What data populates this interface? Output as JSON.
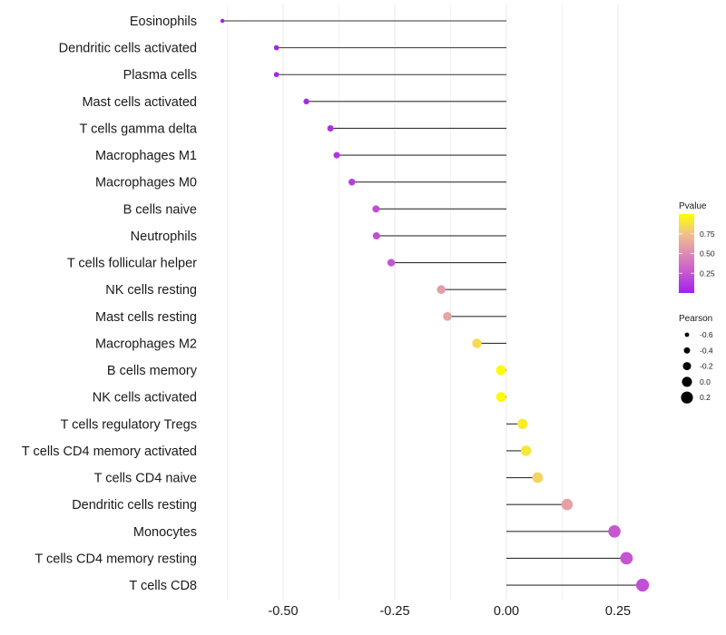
{
  "chart_data": {
    "type": "scatter",
    "subtype": "lollipop",
    "title": "",
    "xlabel": "",
    "ylabel": "",
    "xlim": [
      -0.66,
      0.33
    ],
    "x_ticks": [
      -0.5,
      -0.25,
      0.0,
      0.25
    ],
    "x_tick_labels": [
      "-0.50",
      "-0.25",
      "0.00",
      "0.25"
    ],
    "grid": true,
    "categories": [
      "Eosinophils",
      "Dendritic cells activated",
      "Plasma cells",
      "Mast cells activated",
      "T cells gamma delta",
      "Macrophages M1",
      "Macrophages M0",
      "B cells naive",
      "Neutrophils",
      "T cells follicular helper",
      "NK cells resting",
      "Mast cells resting",
      "Macrophages M2",
      "B cells memory",
      "NK cells activated",
      "T cells regulatory  Tregs ",
      "T cells CD4 memory activated",
      "T cells CD4 naive",
      "Dendritic cells resting",
      "Monocytes",
      "T cells CD4 memory resting",
      "T cells CD8"
    ],
    "pearson": [
      -0.636,
      -0.515,
      -0.515,
      -0.448,
      -0.394,
      -0.38,
      -0.346,
      -0.292,
      -0.291,
      -0.258,
      -0.146,
      -0.132,
      -0.066,
      -0.012,
      -0.012,
      0.036,
      0.044,
      0.07,
      0.136,
      0.242,
      0.269,
      0.305
    ],
    "pvalue": [
      0.01,
      0.02,
      0.02,
      0.04,
      0.08,
      0.1,
      0.14,
      0.22,
      0.22,
      0.25,
      0.58,
      0.62,
      0.85,
      0.98,
      0.98,
      0.92,
      0.9,
      0.82,
      0.6,
      0.26,
      0.25,
      0.22
    ],
    "legend": {
      "color": {
        "title": "Pvalue",
        "ticks": [
          0.25,
          0.5,
          0.75
        ],
        "tick_labels": [
          "0.25",
          "0.50",
          "0.75"
        ],
        "range": [
          0,
          1
        ],
        "low_color": "#A020F0",
        "high_color": "#FFFF00",
        "placement": "right"
      },
      "size": {
        "title": "Pearson",
        "values": [
          -0.6,
          -0.4,
          -0.2,
          0.0,
          0.2
        ],
        "labels": [
          "-0.6",
          "-0.4",
          "-0.2",
          "0.0",
          "0.2"
        ],
        "placement": "right"
      }
    }
  }
}
